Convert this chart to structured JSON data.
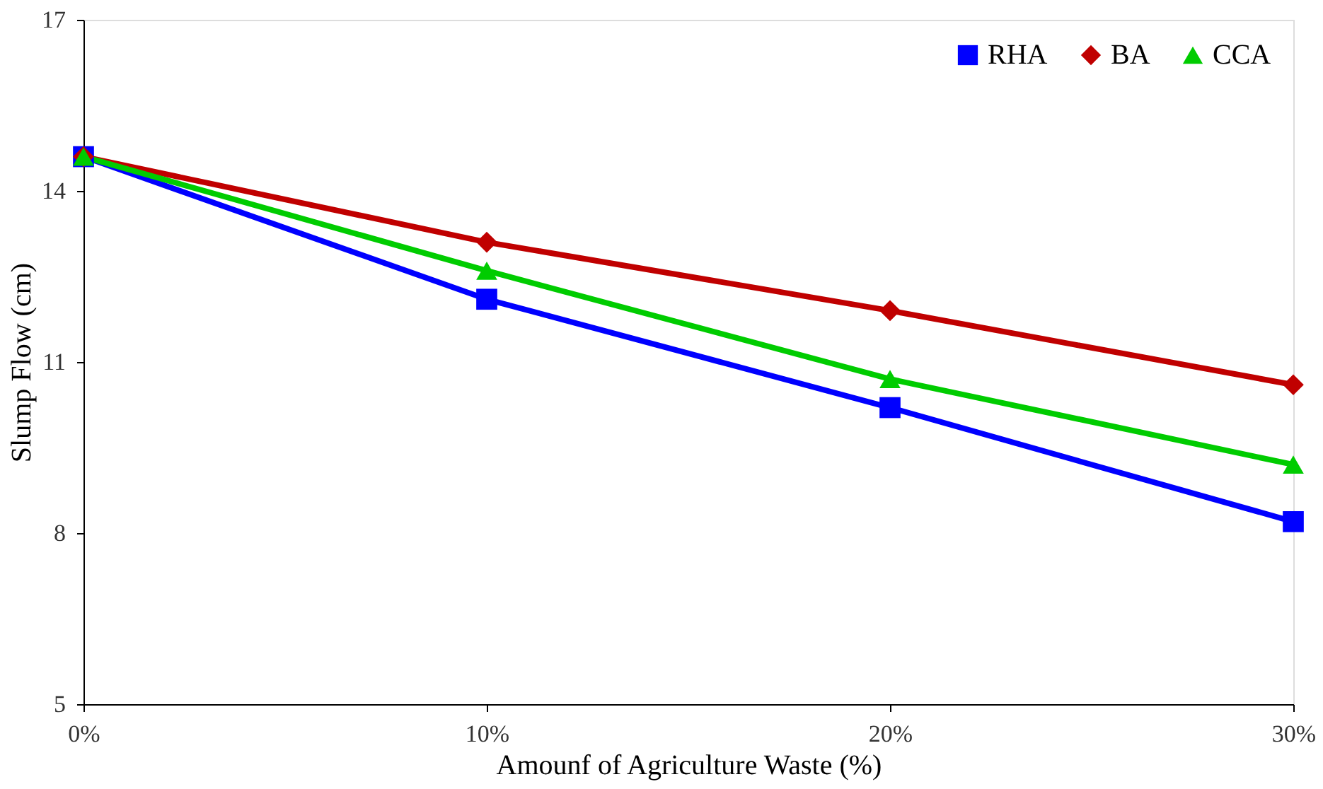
{
  "chart_data": {
    "type": "line",
    "categories": [
      "0%",
      "10%",
      "20%",
      "30%"
    ],
    "xlabel": "Amounf of Agriculture Waste (%)",
    "ylabel": "Slump Flow (cm)",
    "ylim": [
      5,
      17
    ],
    "yticks": [
      5,
      8,
      11,
      14,
      17
    ],
    "grid": false,
    "legend": "top right",
    "line_style": "solid",
    "series": [
      {
        "name": "RHA",
        "color": "#0000ff",
        "marker": "square",
        "values": [
          14.6,
          12.1,
          10.2,
          8.2
        ]
      },
      {
        "name": "BA",
        "color": "#c00000",
        "marker": "diamond",
        "values": [
          14.6,
          13.1,
          11.9,
          10.6
        ]
      },
      {
        "name": "CCA",
        "color": "#00cc00",
        "marker": "triangle",
        "values": [
          14.6,
          12.6,
          10.7,
          9.2
        ]
      }
    ]
  }
}
